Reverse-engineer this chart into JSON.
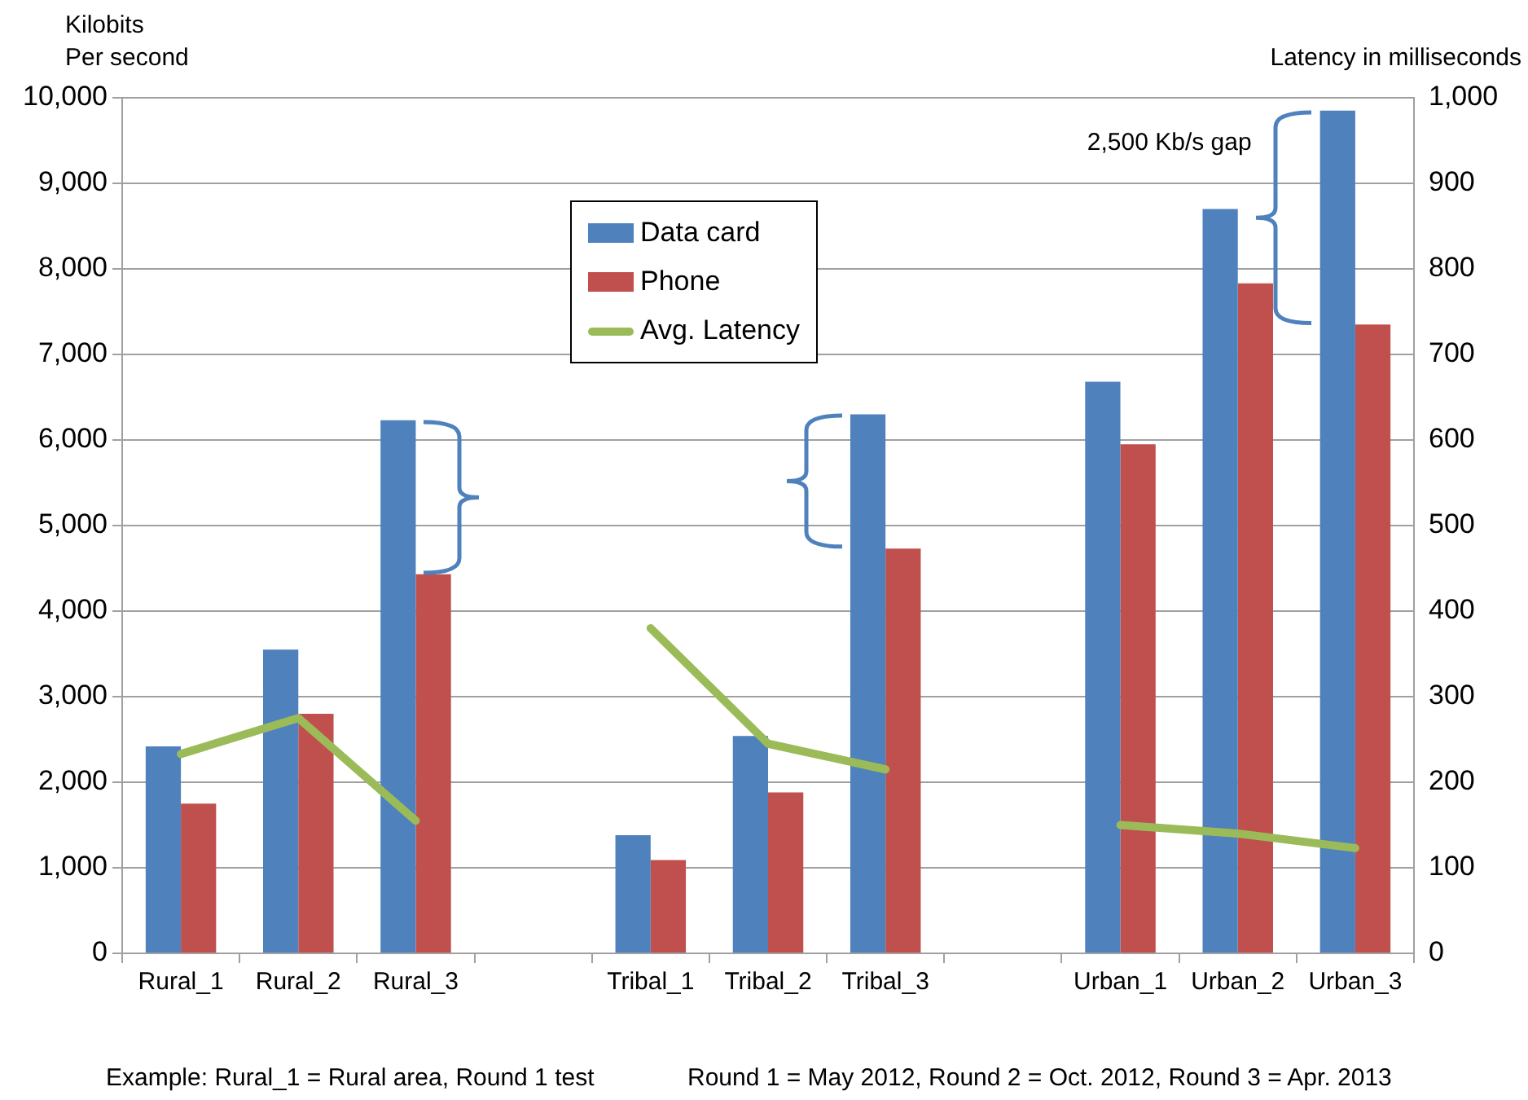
{
  "chart_data": {
    "type": "bar",
    "ylabel": "Kilobits\nPer second",
    "y2label": "Latency in milliseconds",
    "categories": [
      "Rural_1",
      "Rural_2",
      "Rural_3",
      null,
      "Tribal_1",
      "Tribal_2",
      "Tribal_3",
      null,
      "Urban_1",
      "Urban_2",
      "Urban_3"
    ],
    "series": [
      {
        "name": "Data card",
        "color": "#4f81bd",
        "values": [
          2420,
          3550,
          6230,
          null,
          1380,
          2540,
          6300,
          null,
          6680,
          8700,
          9850
        ]
      },
      {
        "name": "Phone",
        "color": "#c0504d",
        "values": [
          1750,
          2800,
          4430,
          null,
          1090,
          1880,
          4730,
          null,
          5950,
          7830,
          7350
        ]
      },
      {
        "name": "Avg. Latency",
        "type": "line",
        "axis": "y2",
        "color": "#9bbb59",
        "marker": "none",
        "values": [
          233,
          275,
          155,
          null,
          380,
          245,
          215,
          null,
          150,
          140,
          123
        ]
      }
    ],
    "ylim": [
      0,
      10000
    ],
    "yticks": [
      {
        "value": 0,
        "label": "0"
      },
      {
        "value": 1000,
        "label": "1,000"
      },
      {
        "value": 2000,
        "label": "2,000"
      },
      {
        "value": 3000,
        "label": "3,000"
      },
      {
        "value": 4000,
        "label": "4,000"
      },
      {
        "value": 5000,
        "label": "5,000"
      },
      {
        "value": 6000,
        "label": "6,000"
      },
      {
        "value": 7000,
        "label": "7,000"
      },
      {
        "value": 8000,
        "label": "8,000"
      },
      {
        "value": 9000,
        "label": "9,000"
      },
      {
        "value": 10000,
        "label": "10,000"
      }
    ],
    "y2lim": [
      0,
      1000
    ],
    "y2ticks": [
      0,
      100,
      200,
      300,
      400,
      500,
      600,
      700,
      800,
      900,
      {
        "value": 1000,
        "label": "1,000"
      }
    ],
    "grid": "y",
    "legend": "top",
    "annotations": [
      "2,500 Kb/s gap",
      "Example: Rural_1 = Rural area, Round 1 test",
      "Round 1 = May 2012, Round 2 = Oct. 2012, Round 3 = Apr. 2013"
    ]
  }
}
